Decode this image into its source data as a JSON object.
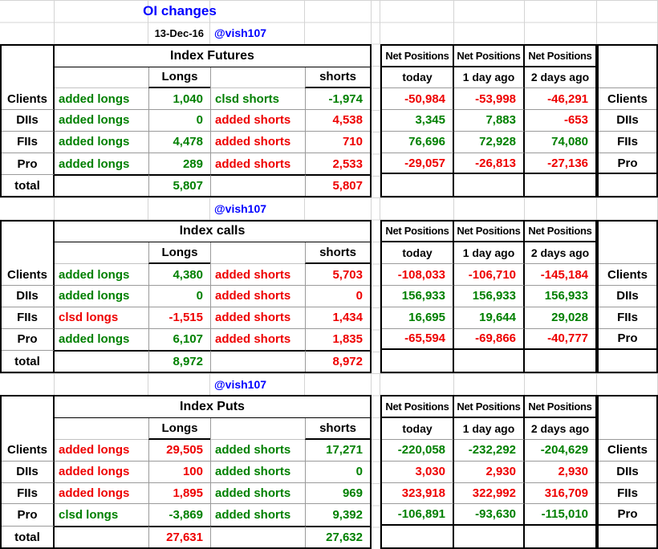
{
  "header": {
    "title": "OI changes",
    "date": "13-Dec-16",
    "handle": "@vish107"
  },
  "labels": {
    "longs": "Longs",
    "shorts": "shorts",
    "net_positions": "Net Positions",
    "today": "today",
    "day1": "1 day ago",
    "day2": "2 days ago",
    "total": "total"
  },
  "palette": {
    "bullish_green": "#008000",
    "bearish_red": "#ee0000",
    "accent_blue": "#0000ff",
    "text_black": "#000000",
    "grid_gray": "#d4d4d4"
  },
  "sections": [
    {
      "title": "Index Futures",
      "rows": [
        {
          "entity": "Clients",
          "long_action": "added longs",
          "long_value": "1,040",
          "long_color": "green",
          "short_action": "clsd shorts",
          "short_value": "-1,974",
          "short_color": "green",
          "net": [
            "-50,984",
            "-53,998",
            "-46,291"
          ],
          "net_colors": [
            "red",
            "red",
            "red"
          ]
        },
        {
          "entity": "DIIs",
          "long_action": "added longs",
          "long_value": "0",
          "long_color": "green",
          "short_action": "added shorts",
          "short_value": "4,538",
          "short_color": "red",
          "net": [
            "3,345",
            "7,883",
            "-653"
          ],
          "net_colors": [
            "green",
            "green",
            "red"
          ]
        },
        {
          "entity": "FIIs",
          "long_action": "added longs",
          "long_value": "4,478",
          "long_color": "green",
          "short_action": "added shorts",
          "short_value": "710",
          "short_color": "red",
          "net": [
            "76,696",
            "72,928",
            "74,080"
          ],
          "net_colors": [
            "green",
            "green",
            "green"
          ]
        },
        {
          "entity": "Pro",
          "long_action": "added longs",
          "long_value": "289",
          "long_color": "green",
          "short_action": "added shorts",
          "short_value": "2,533",
          "short_color": "red",
          "net": [
            "-29,057",
            "-26,813",
            "-27,136"
          ],
          "net_colors": [
            "red",
            "red",
            "red"
          ]
        }
      ],
      "total": {
        "longs": "5,807",
        "longs_color": "green",
        "shorts": "5,807",
        "shorts_color": "red"
      }
    },
    {
      "title": "Index calls",
      "rows": [
        {
          "entity": "Clients",
          "long_action": "added longs",
          "long_value": "4,380",
          "long_color": "green",
          "short_action": "added shorts",
          "short_value": "5,703",
          "short_color": "red",
          "net": [
            "-108,033",
            "-106,710",
            "-145,184"
          ],
          "net_colors": [
            "red",
            "red",
            "red"
          ]
        },
        {
          "entity": "DIIs",
          "long_action": "added longs",
          "long_value": "0",
          "long_color": "green",
          "short_action": "added shorts",
          "short_value": "0",
          "short_color": "red",
          "net": [
            "156,933",
            "156,933",
            "156,933"
          ],
          "net_colors": [
            "green",
            "green",
            "green"
          ]
        },
        {
          "entity": "FIIs",
          "long_action": "clsd longs",
          "long_value": "-1,515",
          "long_color": "red",
          "short_action": "added shorts",
          "short_value": "1,434",
          "short_color": "red",
          "net": [
            "16,695",
            "19,644",
            "29,028"
          ],
          "net_colors": [
            "green",
            "green",
            "green"
          ]
        },
        {
          "entity": "Pro",
          "long_action": "added longs",
          "long_value": "6,107",
          "long_color": "green",
          "short_action": "added shorts",
          "short_value": "1,835",
          "short_color": "red",
          "net": [
            "-65,594",
            "-69,866",
            "-40,777"
          ],
          "net_colors": [
            "red",
            "red",
            "red"
          ]
        }
      ],
      "total": {
        "longs": "8,972",
        "longs_color": "green",
        "shorts": "8,972",
        "shorts_color": "red"
      }
    },
    {
      "title": "Index Puts",
      "rows": [
        {
          "entity": "Clients",
          "long_action": "added longs",
          "long_value": "29,505",
          "long_color": "red",
          "short_action": "added shorts",
          "short_value": "17,271",
          "short_color": "green",
          "net": [
            "-220,058",
            "-232,292",
            "-204,629"
          ],
          "net_colors": [
            "green",
            "green",
            "green"
          ]
        },
        {
          "entity": "DIIs",
          "long_action": "added longs",
          "long_value": "100",
          "long_color": "red",
          "short_action": "added shorts",
          "short_value": "0",
          "short_color": "green",
          "net": [
            "3,030",
            "2,930",
            "2,930"
          ],
          "net_colors": [
            "red",
            "red",
            "red"
          ]
        },
        {
          "entity": "FIIs",
          "long_action": "added longs",
          "long_value": "1,895",
          "long_color": "red",
          "short_action": "added shorts",
          "short_value": "969",
          "short_color": "green",
          "net": [
            "323,918",
            "322,992",
            "316,709"
          ],
          "net_colors": [
            "red",
            "red",
            "red"
          ]
        },
        {
          "entity": "Pro",
          "long_action": "clsd longs",
          "long_value": "-3,869",
          "long_color": "green",
          "short_action": "added shorts",
          "short_value": "9,392",
          "short_color": "green",
          "net": [
            "-106,891",
            "-93,630",
            "-115,010"
          ],
          "net_colors": [
            "green",
            "green",
            "green"
          ]
        }
      ],
      "total": {
        "longs": "27,631",
        "longs_color": "red",
        "shorts": "27,632",
        "shorts_color": "green"
      }
    }
  ]
}
